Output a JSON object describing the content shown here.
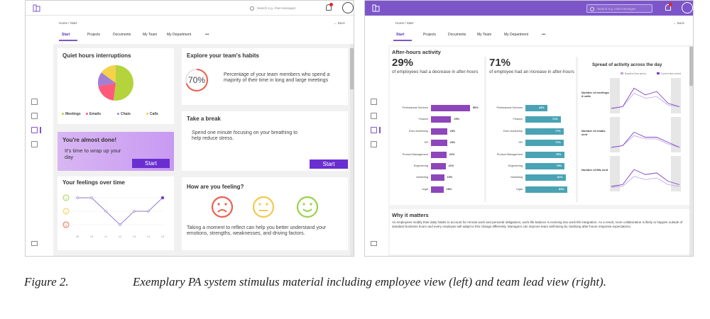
{
  "search_placeholder": "Search e.g. chat messages",
  "breadcrumb": "Home / Start",
  "back_label": "← Back",
  "tabs": [
    "Start",
    "Projects",
    "Documents",
    "My Team",
    "My Department",
    "•••"
  ],
  "employee_view": {
    "quiet_hours": {
      "title": "Quiet hours interruptions",
      "slices": [
        {
          "label": "Meetings",
          "value": 52,
          "color": "#b5d33d"
        },
        {
          "label": "Emails",
          "value": 20,
          "color": "#ff5a7a"
        },
        {
          "label": "Chats",
          "value": 13,
          "color": "#a37fd3"
        },
        {
          "label": "Calls",
          "value": 15,
          "color": "#f5d24a"
        }
      ]
    },
    "habits": {
      "title": "Explore your team's habits",
      "percent": "70%",
      "value": 70,
      "text": "Percentage of your team members who spend a majority of their time in long and large meetings"
    },
    "almost_done": {
      "title": "You're almost done!",
      "text": "It's time to wrap up your day",
      "button": "Start"
    },
    "take_break": {
      "title": "Take a break",
      "text": "Spend one minute focusing on your breathing to help reduce stress.",
      "button": "Start"
    },
    "feelings_over_time": {
      "title": "Your feelings over time",
      "days": [
        "09",
        "10",
        "11",
        "12",
        "13",
        "14",
        "15"
      ],
      "levels": [
        1,
        1,
        0.5,
        0,
        0.5,
        0.5,
        1
      ]
    },
    "how_feeling": {
      "title": "How are you feeling?",
      "text": "Taking a moment to reflect can help you better understand your emotions, strengths, weaknesses, and driving factors."
    }
  },
  "lead_view": {
    "panel_title": "After-hours activity",
    "decrease": {
      "percent": "29%",
      "text": "of employees had a decrease in after-hours",
      "color": "#8e46bb",
      "bars": [
        {
          "label": "Professional Services",
          "value": 56
        },
        {
          "label": "Finance",
          "value": 29
        },
        {
          "label": "Exec leadership",
          "value": 23
        },
        {
          "label": "HR",
          "value": 23
        },
        {
          "label": "Product Management",
          "value": 22
        },
        {
          "label": "Engineering",
          "value": 21
        },
        {
          "label": "Marketing",
          "value": 19
        },
        {
          "label": "Legal",
          "value": 18
        }
      ]
    },
    "increase": {
      "percent": "71%",
      "text": "of employee had an increase in after-hours",
      "color": "#4aa3b4",
      "bars": [
        {
          "label": "Professional Services",
          "value": 44
        },
        {
          "label": "Finance",
          "value": 71
        },
        {
          "label": "Exec leadership",
          "value": 77
        },
        {
          "label": "HR",
          "value": 77
        },
        {
          "label": "Product Management",
          "value": 78
        },
        {
          "label": "Engineering",
          "value": 79
        },
        {
          "label": "Marketing",
          "value": 81
        },
        {
          "label": "Legal",
          "value": 84
        }
      ]
    },
    "spread": {
      "title": "Spread of activity across the day",
      "legend": [
        "Baseline time period",
        "Current time period"
      ],
      "rows": [
        "Number of meetings & calls",
        "Number of emails sent",
        "Number of IMs sent"
      ]
    },
    "why": {
      "title": "Why it matters",
      "text": "As employees modify their daily habits to account for remote work and personal obligations, work-life balance is evolving into work-life integration. As a result, more collaboration is likely to happen outside of standard business hours and every employee will adapt to this change differently. Managers can improve team well-being by clarifying after-hours response expectations."
    }
  },
  "caption": {
    "label": "Figure 2.",
    "text": "Exemplary PA system stimulus material including employee view (left) and team lead view (right)."
  }
}
